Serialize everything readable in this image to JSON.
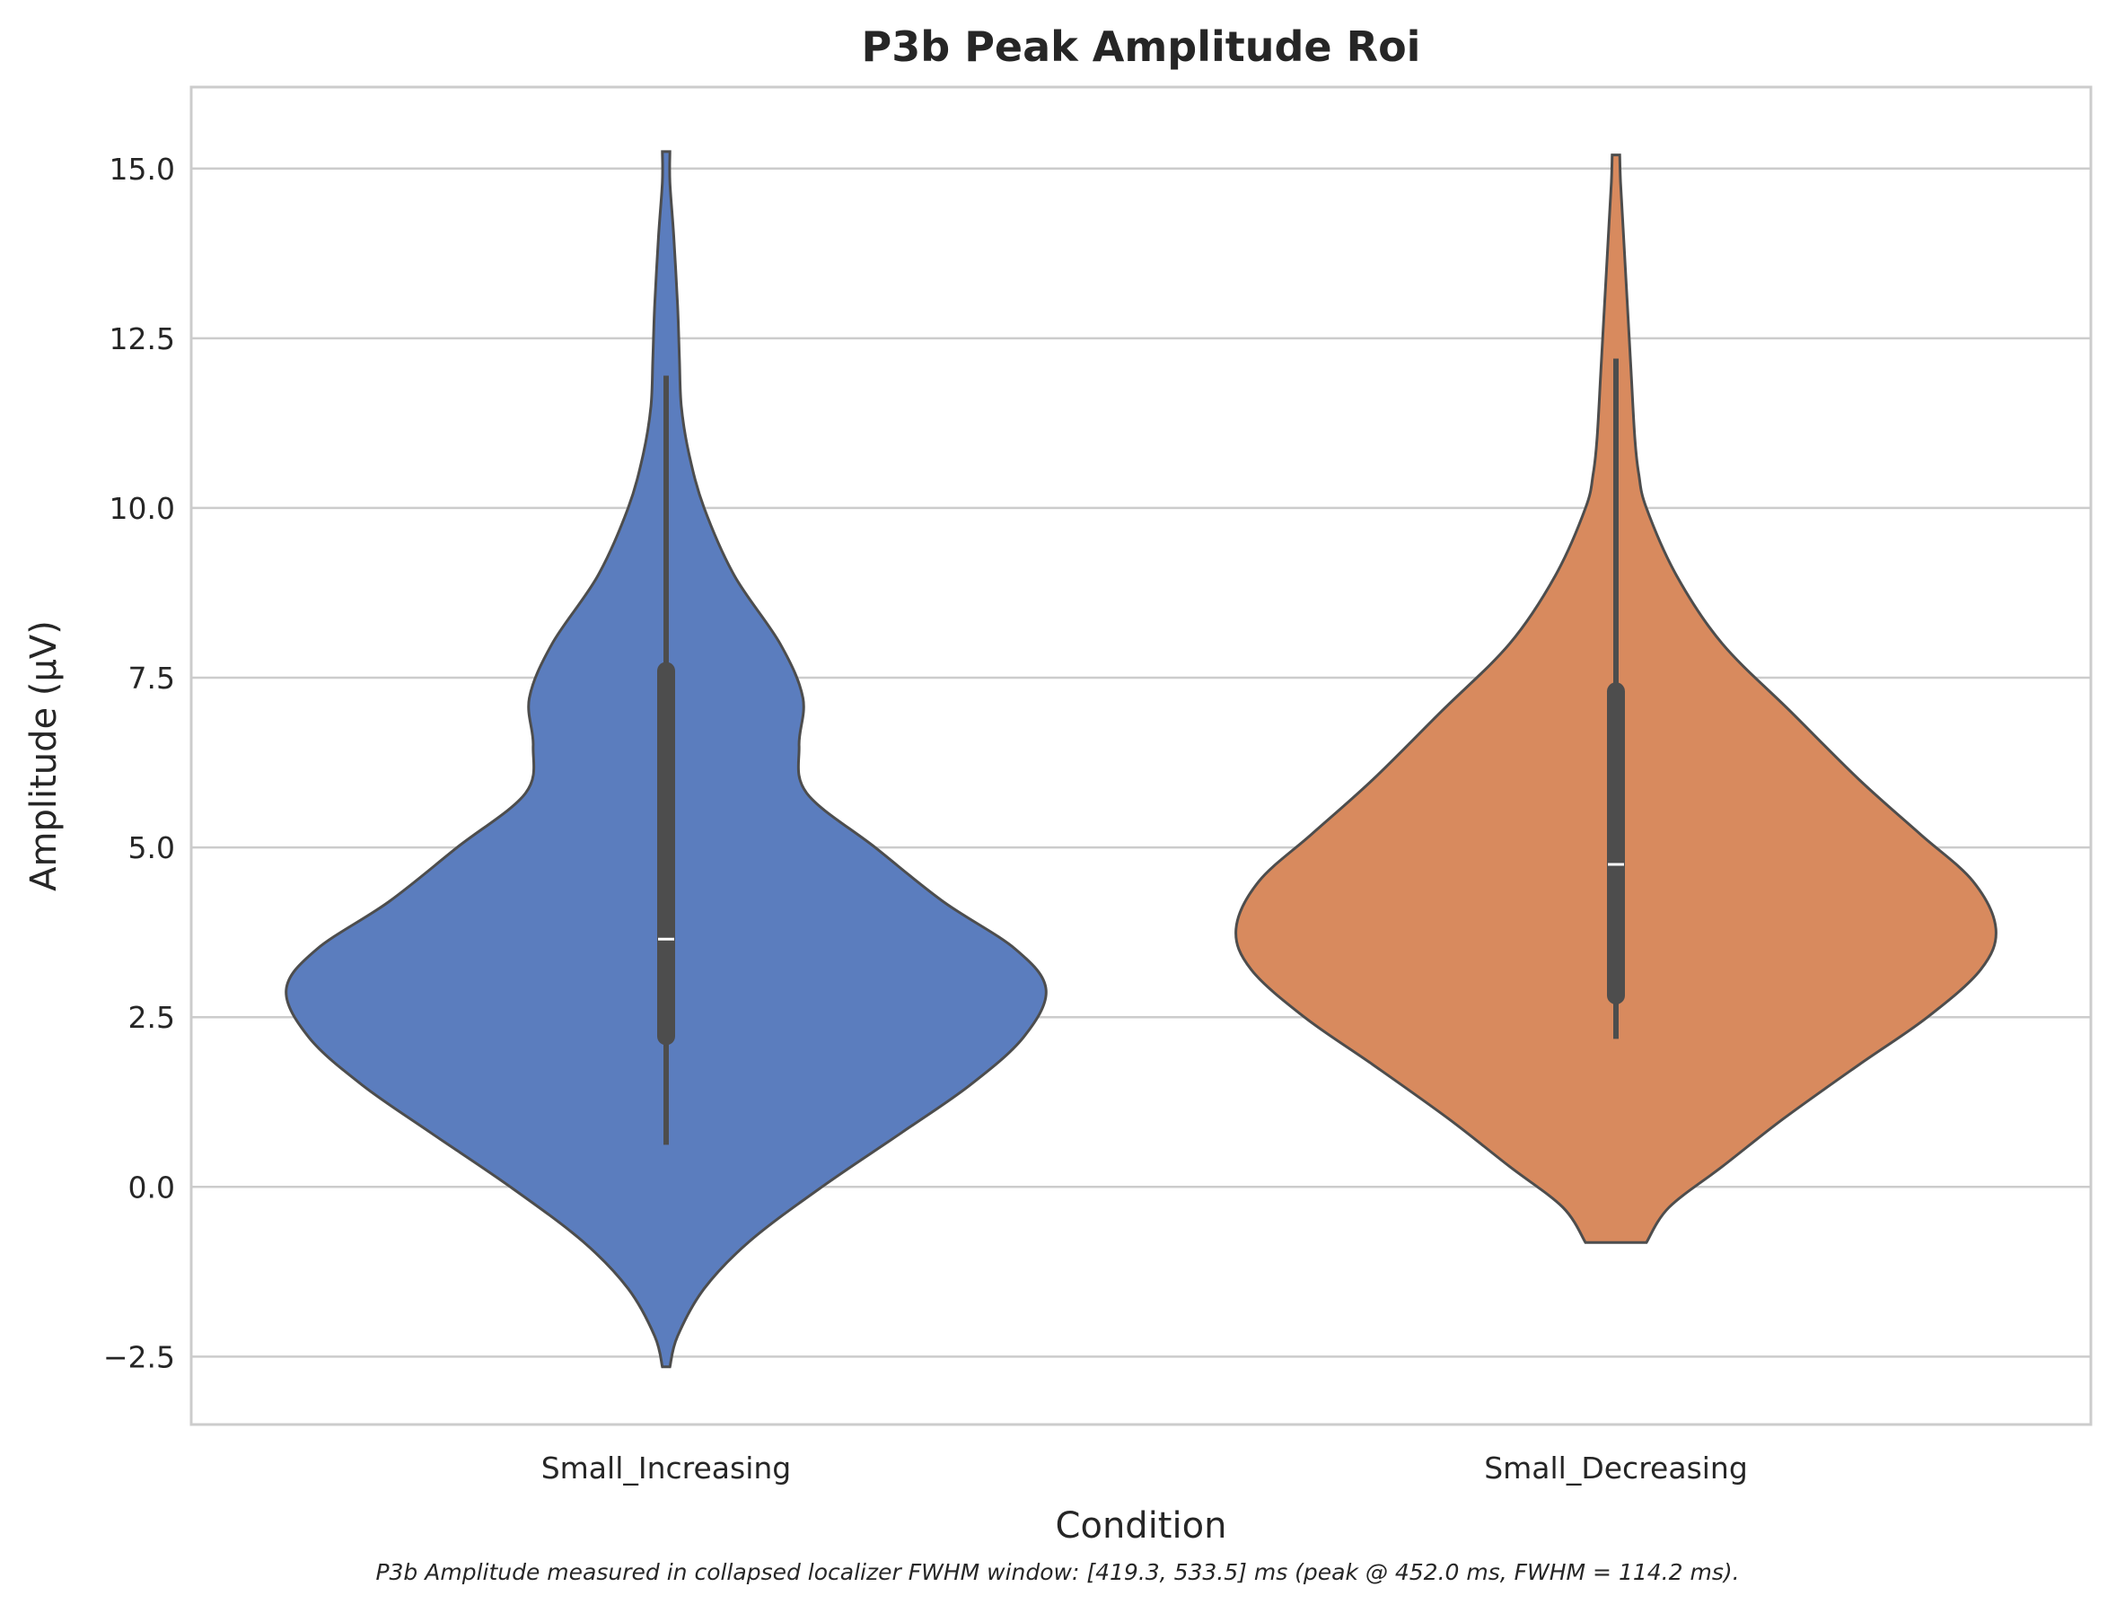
{
  "chart_data": {
    "type": "violin",
    "title": "P3b Peak Amplitude Roi",
    "xlabel": "Condition",
    "ylabel": "Amplitude (µV)",
    "ylim": [
      -3.5,
      16.2
    ],
    "yticks": [
      -2.5,
      0.0,
      2.5,
      5.0,
      7.5,
      10.0,
      12.5,
      15.0
    ],
    "ytick_labels": [
      "−2.5",
      "0.0",
      "2.5",
      "5.0",
      "7.5",
      "10.0",
      "12.5",
      "15.0"
    ],
    "grid": true,
    "categories": [
      "Small_Increasing",
      "Small_Decreasing"
    ],
    "series": [
      {
        "category": "Small_Increasing",
        "color": "#5b7dbe",
        "y_min": -2.65,
        "y_max": 15.25,
        "whisker_low": 0.62,
        "whisker_high": 11.95,
        "q1": 2.22,
        "q3": 7.6,
        "median": 3.65,
        "density": [
          [
            -2.65,
            0.01
          ],
          [
            -2.2,
            0.03
          ],
          [
            -1.5,
            0.1
          ],
          [
            -0.8,
            0.22
          ],
          [
            0,
            0.41
          ],
          [
            0.8,
            0.62
          ],
          [
            1.5,
            0.8
          ],
          [
            2.2,
            0.94
          ],
          [
            2.9,
            1.0
          ],
          [
            3.5,
            0.92
          ],
          [
            4.2,
            0.73
          ],
          [
            5,
            0.55
          ],
          [
            5.8,
            0.37
          ],
          [
            6.5,
            0.35
          ],
          [
            7.2,
            0.36
          ],
          [
            8,
            0.3
          ],
          [
            9,
            0.18
          ],
          [
            10,
            0.1
          ],
          [
            10.8,
            0.06
          ],
          [
            11.5,
            0.04
          ],
          [
            12.2,
            0.035
          ],
          [
            13,
            0.03
          ],
          [
            14,
            0.02
          ],
          [
            14.8,
            0.01
          ],
          [
            15.25,
            0.01
          ]
        ]
      },
      {
        "category": "Small_Decreasing",
        "color": "#d88a5e",
        "y_min": -0.82,
        "y_max": 15.2,
        "whisker_low": 2.18,
        "whisker_high": 12.2,
        "q1": 2.82,
        "q3": 7.3,
        "median": 4.75,
        "density": [
          [
            -0.82,
            0.08
          ],
          [
            -0.3,
            0.14
          ],
          [
            0.3,
            0.28
          ],
          [
            1,
            0.44
          ],
          [
            1.8,
            0.64
          ],
          [
            2.5,
            0.82
          ],
          [
            3.2,
            0.96
          ],
          [
            3.8,
            1.0
          ],
          [
            4.5,
            0.94
          ],
          [
            5.2,
            0.8
          ],
          [
            6,
            0.64
          ],
          [
            7,
            0.46
          ],
          [
            8,
            0.28
          ],
          [
            9,
            0.16
          ],
          [
            10,
            0.08
          ],
          [
            10.5,
            0.06
          ],
          [
            11,
            0.05
          ],
          [
            12,
            0.04
          ],
          [
            13,
            0.03
          ],
          [
            14,
            0.02
          ],
          [
            14.8,
            0.012
          ],
          [
            15.2,
            0.01
          ]
        ]
      }
    ],
    "caption": "P3b Amplitude measured in collapsed localizer FWHM window: [419.3, 533.5] ms (peak @ 452.0 ms, FWHM = 114.2 ms)."
  }
}
